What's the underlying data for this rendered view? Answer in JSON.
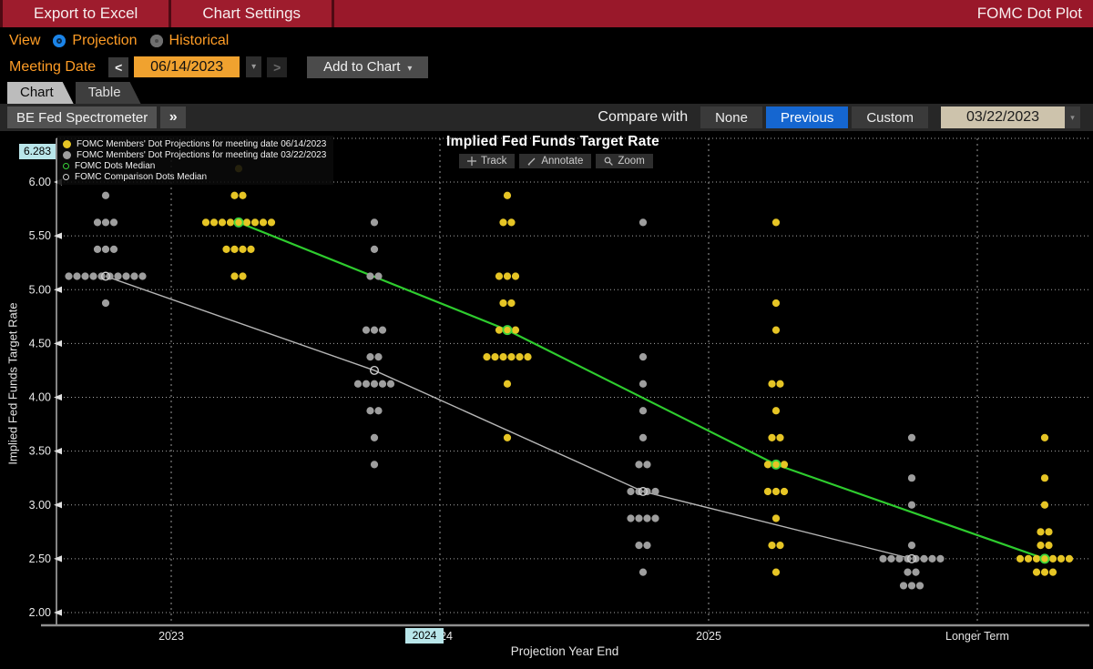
{
  "titlebar": {
    "export_button": "Export to Excel",
    "settings_button": "Chart Settings",
    "app_title": "FOMC Dot Plot"
  },
  "view_row": {
    "label": "View",
    "options": [
      {
        "label": "Projection",
        "selected": true
      },
      {
        "label": "Historical",
        "selected": false
      }
    ]
  },
  "meeting_row": {
    "label": "Meeting Date",
    "date_value": "06/14/2023",
    "add_button": "Add to Chart"
  },
  "tabs": [
    {
      "label": "Chart",
      "active": true
    },
    {
      "label": "Table",
      "active": false
    }
  ],
  "strip": {
    "spectrometer_button": "BE Fed Spectrometer",
    "compare_label": "Compare with",
    "options": [
      {
        "label": "None",
        "selected": false
      },
      {
        "label": "Previous",
        "selected": true
      },
      {
        "label": "Custom",
        "selected": false
      }
    ],
    "compare_date": "03/22/2023"
  },
  "chart_tools": [
    "Track",
    "Annotate",
    "Zoom"
  ],
  "icons": {
    "caret_down": "▾",
    "chevron_left": "<",
    "chevron_right": ">",
    "expand": "»"
  },
  "chart_data": {
    "type": "scatter",
    "title": "Implied Fed Funds Target Rate",
    "xlabel": "Projection Year End",
    "ylabel": "Implied Fed Funds Target Rate",
    "ylim": [
      2.0,
      6.3
    ],
    "yticks": [
      6.0,
      5.5,
      5.0,
      4.5,
      4.0,
      3.5,
      3.0,
      2.5,
      2.0
    ],
    "categories": [
      "2023",
      "2024",
      "2025",
      "Longer Term"
    ],
    "grid": true,
    "legend_position": "top-left",
    "crosshair": {
      "y_value": "6.283",
      "x_value": "2024"
    },
    "series": [
      {
        "name": "FOMC Members' Dot Projections for meeting date 06/14/2023",
        "marker": "filled-dot",
        "color": "#e6c525",
        "dots": {
          "2023": {
            "6.125": 1,
            "5.875": 2,
            "5.625": 9,
            "5.375": 4,
            "5.125": 2
          },
          "2024": {
            "5.875": 1,
            "5.625": 2,
            "5.125": 3,
            "4.875": 2,
            "4.625": 3,
            "4.375": 6,
            "4.125": 1,
            "3.625": 1
          },
          "2025": {
            "5.625": 1,
            "4.875": 1,
            "4.625": 1,
            "4.125": 2,
            "3.875": 1,
            "3.625": 2,
            "3.375": 3,
            "3.125": 3,
            "2.875": 1,
            "2.625": 2,
            "2.375": 1
          },
          "Longer Term": {
            "3.625": 1,
            "3.25": 1,
            "3.0": 1,
            "2.75": 2,
            "2.625": 2,
            "2.5": 7,
            "2.375": 3
          }
        }
      },
      {
        "name": "FOMC Members' Dot Projections for meeting date 03/22/2023",
        "marker": "filled-dot",
        "color": "#9e9e9e",
        "dots": {
          "2023": {
            "5.875": 1,
            "5.625": 3,
            "5.375": 3,
            "5.125": 10,
            "4.875": 1
          },
          "2024": {
            "5.625": 1,
            "5.375": 1,
            "5.125": 2,
            "4.625": 3,
            "4.375": 2,
            "4.125": 5,
            "3.875": 2,
            "3.625": 1,
            "3.375": 1
          },
          "2025": {
            "5.625": 1,
            "4.375": 1,
            "4.125": 1,
            "3.875": 1,
            "3.625": 1,
            "3.375": 2,
            "3.125": 4,
            "2.875": 4,
            "2.625": 2,
            "2.375": 1
          },
          "Longer Term": {
            "3.625": 1,
            "3.25": 1,
            "3.0": 1,
            "2.625": 1,
            "2.5": 8,
            "2.375": 2,
            "2.25": 3
          }
        }
      },
      {
        "name": "FOMC Dots Median",
        "marker": "open-circle",
        "color": "#38d438",
        "values": {
          "2023": 5.625,
          "2024": 4.625,
          "2025": 3.375,
          "Longer Term": 2.5
        }
      },
      {
        "name": "FOMC Comparison Dots Median",
        "marker": "open-circle",
        "color": "#cfcfcf",
        "values": {
          "2023": 5.125,
          "2024": 4.25,
          "2025": 3.125,
          "Longer Term": 2.5
        }
      }
    ]
  }
}
